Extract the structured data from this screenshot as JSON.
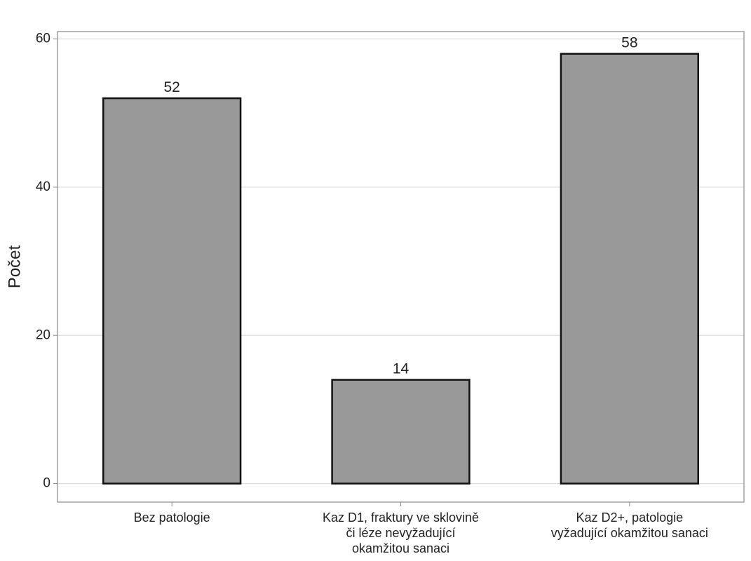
{
  "chart_data": {
    "type": "bar",
    "title": "",
    "xlabel": "",
    "ylabel": "Počet",
    "categories": [
      [
        "Bez patologie"
      ],
      [
        "Kaz D1, fraktury ve sklovině",
        "či léze nevyžadující",
        "okamžitou sanaci"
      ],
      [
        "Kaz D2+, patologie",
        "vyžadující okamžitou sanaci"
      ]
    ],
    "values": [
      52,
      14,
      58
    ],
    "data_labels": [
      "52",
      "14",
      "58"
    ],
    "ylim": [
      -2.5,
      61
    ],
    "yticks": [
      0,
      20,
      40,
      60
    ],
    "ytick_labels": [
      "0",
      "20",
      "40",
      "60"
    ],
    "grid": true,
    "legend": "none",
    "colors": {
      "bar_fill": "#999999",
      "bar_stroke": "#111111",
      "grid": "#d6d6d6",
      "panel_border": "#8a8a8a",
      "text": "#222222"
    }
  }
}
